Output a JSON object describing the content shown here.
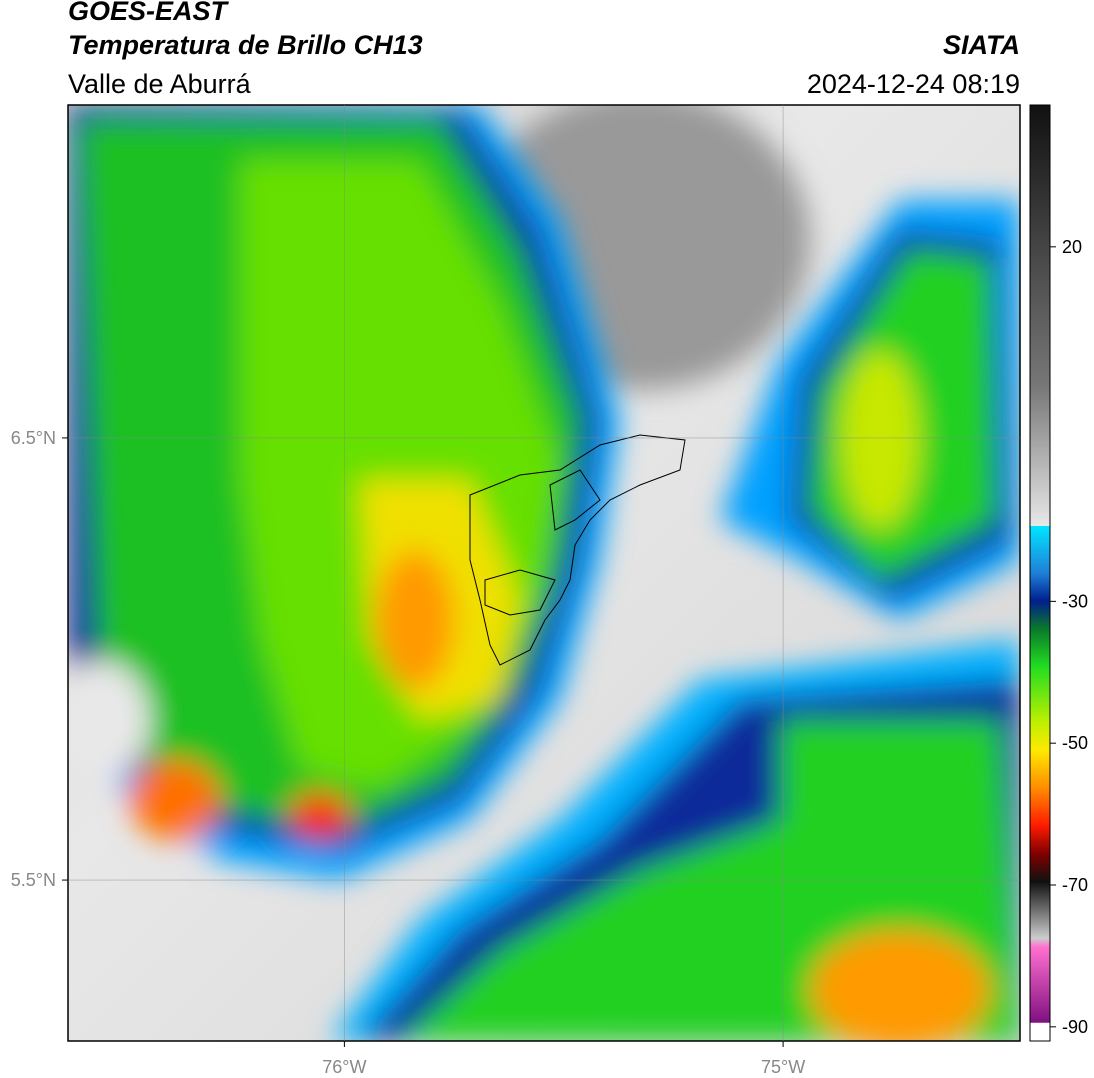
{
  "header": {
    "title": "GOES-EAST",
    "subtitle": "Temperatura de Brillo CH13",
    "region": "Valle de Aburrá",
    "source": "SIATA",
    "datetime": "2024-12-24 08:19"
  },
  "map": {
    "xlim": [
      -76.63,
      -74.46
    ],
    "ylim": [
      5.136,
      7.253
    ],
    "xticks": [
      {
        "value": -76,
        "label": "76°W"
      },
      {
        "value": -75,
        "label": "75°W"
      }
    ],
    "yticks": [
      {
        "value": 6.5,
        "label": "6.5°N"
      },
      {
        "value": 5.5,
        "label": "5.5°N"
      }
    ]
  },
  "colorbar": {
    "lim": [
      -92,
      40
    ],
    "ticks": [
      20,
      -30,
      -50,
      -70,
      -90
    ]
  }
}
